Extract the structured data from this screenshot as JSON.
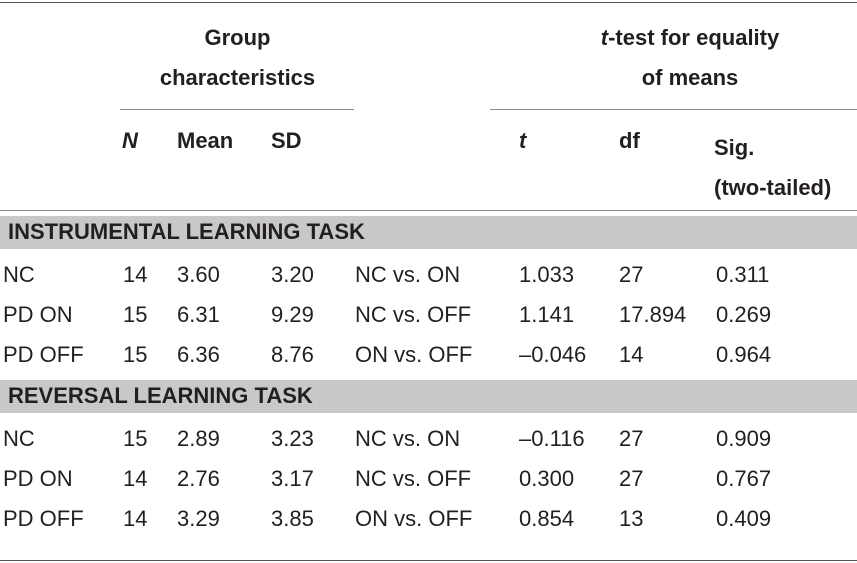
{
  "header": {
    "group_line1": "Group",
    "group_line2": "characteristics",
    "ttest_line1_italic": "t",
    "ttest_line1_rest": "-test for equality",
    "ttest_line2": "of means",
    "col_n": "N",
    "col_mean": "Mean",
    "col_sd": "SD",
    "col_t": "t",
    "col_df": "df",
    "col_sig_line1": "Sig.",
    "col_sig_line2": "(two-tailed)"
  },
  "sections": [
    {
      "title": "INSTRUMENTAL LEARNING TASK",
      "rows": [
        {
          "group": "NC",
          "n": "14",
          "mean": "3.60",
          "sd": "3.20",
          "comparison": "NC vs. ON",
          "t": "1.033",
          "df": "27",
          "sig": "0.311"
        },
        {
          "group": "PD ON",
          "n": "15",
          "mean": "6.31",
          "sd": "9.29",
          "comparison": "NC vs. OFF",
          "t": "1.141",
          "df": "17.894",
          "sig": "0.269"
        },
        {
          "group": "PD OFF",
          "n": "15",
          "mean": "6.36",
          "sd": "8.76",
          "comparison": "ON vs. OFF",
          "t": "–0.046",
          "df": "14",
          "sig": "0.964"
        }
      ]
    },
    {
      "title": "REVERSAL LEARNING TASK",
      "rows": [
        {
          "group": "NC",
          "n": "15",
          "mean": "2.89",
          "sd": "3.23",
          "comparison": "NC vs. ON",
          "t": "–0.116",
          "df": "27",
          "sig": "0.909"
        },
        {
          "group": "PD ON",
          "n": "14",
          "mean": "2.76",
          "sd": "3.17",
          "comparison": "NC vs. OFF",
          "t": "0.300",
          "df": "27",
          "sig": "0.767"
        },
        {
          "group": "PD OFF",
          "n": "14",
          "mean": "3.29",
          "sd": "3.85",
          "comparison": "ON vs. OFF",
          "t": "0.854",
          "df": "13",
          "sig": "0.409"
        }
      ]
    }
  ]
}
